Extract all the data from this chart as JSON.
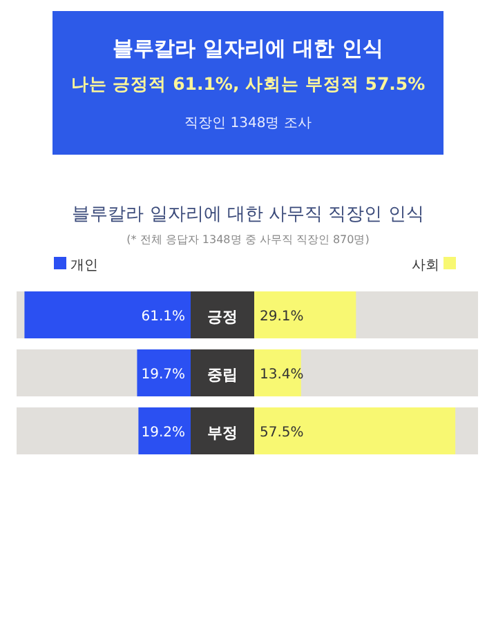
{
  "chart_data": [
    {
      "type": "bar",
      "orientation": "horizontal",
      "title": "블루칼라 일자리에 대한 인식",
      "subtitle": "나는 긍정적 61.1%, 사회는 부정적 57.5%",
      "annotations": [
        "직장인 1348명 조사",
        "블루칼라 일자리에 대한 사무직 직장인 인식",
        "(* 전체 응답자 1348명 중 사무직 직장인 870명)"
      ],
      "categories": [
        "긍정",
        "중립",
        "부정"
      ],
      "series": [
        {
          "name": "개인",
          "color": "#2b50f2",
          "values": [
            61.1,
            19.7,
            19.2
          ],
          "value_labels": [
            "61.1%",
            "19.7%",
            "19.2%"
          ]
        }
      ],
      "xlim": [
        64,
        0
      ],
      "tick_labels": "y",
      "legend": "top left"
    },
    {
      "type": "bar",
      "orientation": "horizontal",
      "categories": [
        null,
        null,
        null
      ],
      "series": [
        {
          "name": "사회",
          "color": "#f8f872",
          "values": [
            29.1,
            13.4,
            57.5
          ],
          "value_labels": [
            "29.1%",
            "13.4%",
            "57.5%"
          ]
        }
      ],
      "xlim": [
        0,
        64
      ],
      "tick_labels": false,
      "legend": "top right"
    }
  ]
}
